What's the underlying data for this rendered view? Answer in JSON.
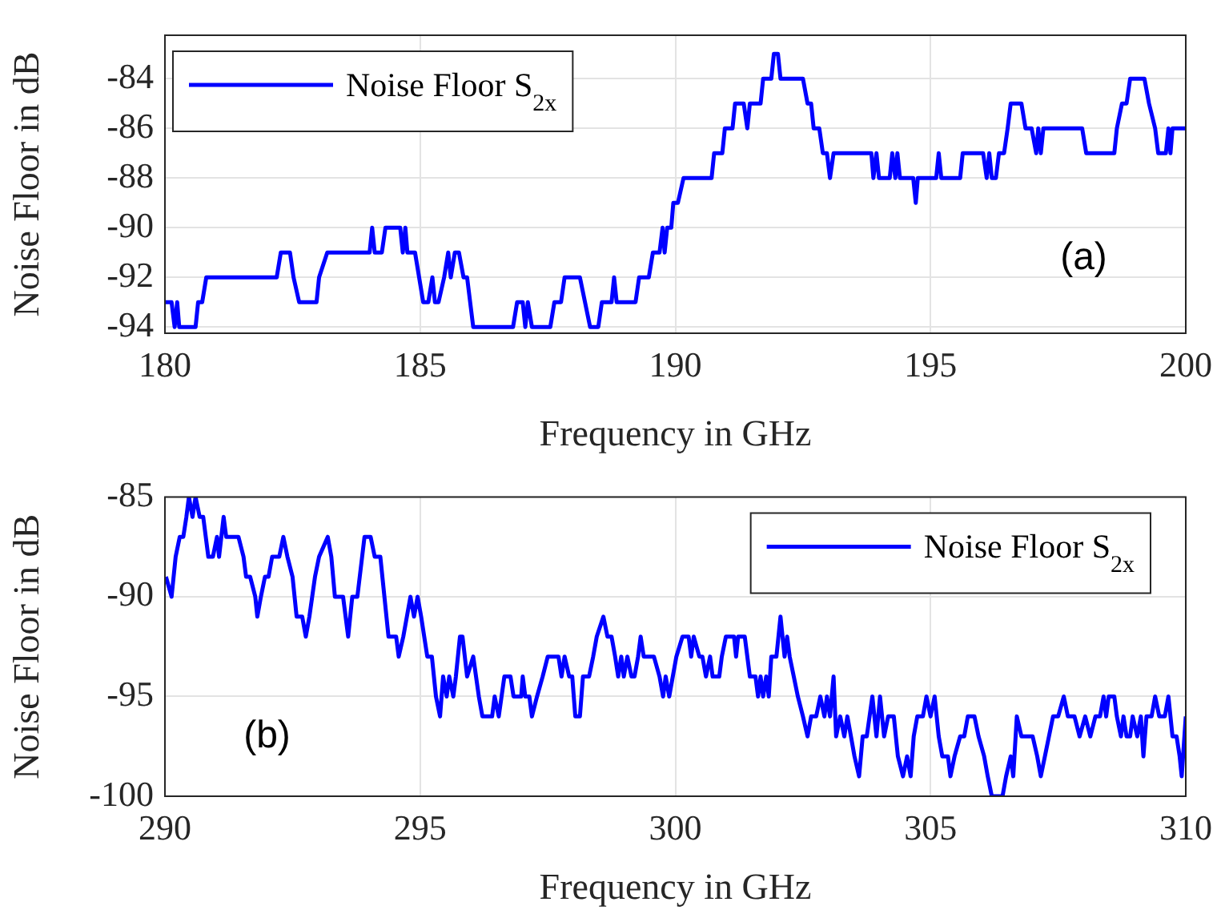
{
  "chart_data": [
    {
      "type": "line",
      "xlabel": "Frequency in GHz",
      "ylabel": "Noise Floor in dB",
      "xlim": [
        180,
        200
      ],
      "xticks": [
        180,
        185,
        190,
        195,
        200
      ],
      "ylim": [
        -94.25,
        -82.25
      ],
      "yticks": [
        -94,
        -92,
        -90,
        -88,
        -86,
        -84
      ],
      "grid": true,
      "legend": "top left",
      "annotations": [
        "(a)"
      ],
      "series": [
        {
          "name": "Noise Floor S$_{2x}$",
          "color": "#0000ff",
          "x": [
            180.0,
            180.13,
            180.19,
            180.24,
            180.28,
            180.6,
            180.65,
            180.73,
            180.81,
            182.19,
            182.27,
            182.45,
            182.52,
            182.63,
            182.97,
            183.02,
            183.18,
            184.01,
            184.06,
            184.11,
            184.25,
            184.32,
            184.61,
            184.66,
            184.71,
            184.75,
            184.9,
            184.98,
            185.06,
            185.16,
            185.24,
            185.29,
            185.36,
            185.47,
            185.55,
            185.6,
            185.68,
            185.76,
            185.85,
            185.92,
            186.04,
            186.82,
            186.9,
            187.01,
            187.06,
            187.11,
            187.19,
            187.55,
            187.63,
            187.76,
            187.83,
            188.13,
            188.23,
            188.33,
            188.49,
            188.56,
            188.75,
            188.8,
            188.85,
            189.22,
            189.29,
            189.48,
            189.56,
            189.69,
            189.75,
            189.79,
            189.84,
            189.92,
            189.96,
            190.05,
            190.16,
            190.71,
            190.76,
            190.92,
            190.97,
            191.12,
            191.17,
            191.34,
            191.41,
            191.46,
            191.67,
            191.72,
            191.88,
            191.93,
            192.01,
            192.06,
            192.5,
            192.59,
            192.66,
            192.71,
            192.82,
            192.89,
            192.97,
            193.03,
            193.1,
            193.84,
            193.88,
            193.94,
            193.99,
            194.2,
            194.25,
            194.31,
            194.35,
            194.4,
            194.66,
            194.71,
            194.75,
            195.11,
            195.16,
            195.21,
            195.58,
            195.63,
            196.03,
            196.1,
            196.15,
            196.2,
            196.28,
            196.34,
            196.44,
            196.51,
            196.57,
            196.78,
            196.86,
            196.98,
            197.07,
            197.11,
            197.16,
            197.21,
            197.97,
            198.05,
            198.6,
            198.65,
            198.75,
            198.84,
            198.91,
            199.19,
            199.28,
            199.4,
            199.46,
            199.61,
            199.66,
            199.7,
            199.74,
            200.0
          ],
          "values": [
            -93,
            -93,
            -94,
            -93,
            -94,
            -94,
            -93,
            -93,
            -92,
            -92,
            -91,
            -91,
            -92,
            -93,
            -93,
            -92,
            -91,
            -91,
            -90,
            -91,
            -91,
            -90,
            -90,
            -91,
            -90,
            -91,
            -91,
            -92,
            -93,
            -93,
            -92,
            -93,
            -93,
            -92,
            -91,
            -92,
            -91,
            -91,
            -92,
            -92,
            -94,
            -94,
            -93,
            -93,
            -94,
            -93,
            -94,
            -94,
            -93,
            -93,
            -92,
            -92,
            -93,
            -94,
            -94,
            -93,
            -93,
            -92,
            -93,
            -93,
            -92,
            -92,
            -91,
            -91,
            -90,
            -91,
            -90,
            -90,
            -89,
            -89,
            -88,
            -88,
            -87,
            -87,
            -86,
            -86,
            -85,
            -85,
            -86,
            -85,
            -85,
            -84,
            -84,
            -83,
            -83,
            -84,
            -84,
            -85,
            -85,
            -86,
            -86,
            -87,
            -87,
            -88,
            -87,
            -87,
            -88,
            -87,
            -88,
            -88,
            -87,
            -88,
            -87,
            -88,
            -88,
            -89,
            -88,
            -88,
            -87,
            -88,
            -88,
            -87,
            -87,
            -88,
            -87,
            -88,
            -88,
            -87,
            -87,
            -86,
            -85,
            -85,
            -86,
            -86,
            -87,
            -86,
            -87,
            -86,
            -86,
            -87,
            -87,
            -86,
            -85,
            -85,
            -84,
            -84,
            -85,
            -86,
            -87,
            -87,
            -86,
            -87,
            -86,
            -86
          ]
        }
      ]
    },
    {
      "type": "line",
      "xlabel": "Frequency in GHz",
      "ylabel": "Noise Floor in dB",
      "xlim": [
        290,
        310
      ],
      "xticks": [
        290,
        295,
        300,
        305,
        310
      ],
      "ylim": [
        -100,
        -85
      ],
      "yticks": [
        -100,
        -95,
        -90,
        -85
      ],
      "grid": true,
      "legend": "top right",
      "annotations": [
        "(b)"
      ],
      "series": [
        {
          "name": "Noise Floor S$_{2x}$",
          "color": "#0000ff",
          "x": [
            290.02,
            290.13,
            290.21,
            290.29,
            290.36,
            290.42,
            290.47,
            290.54,
            290.6,
            290.68,
            290.75,
            290.85,
            290.94,
            291.02,
            291.06,
            291.15,
            291.2,
            291.44,
            291.54,
            291.59,
            291.67,
            291.77,
            291.81,
            291.88,
            291.96,
            292.03,
            292.1,
            292.24,
            292.32,
            292.4,
            292.5,
            292.58,
            292.69,
            292.76,
            292.83,
            292.94,
            293.02,
            293.19,
            293.26,
            293.33,
            293.49,
            293.54,
            293.59,
            293.67,
            293.77,
            293.91,
            294.03,
            294.11,
            294.22,
            294.38,
            294.53,
            294.58,
            294.67,
            294.74,
            294.81,
            294.88,
            294.95,
            295.02,
            295.14,
            295.23,
            295.31,
            295.39,
            295.45,
            295.52,
            295.57,
            295.65,
            295.7,
            295.78,
            295.83,
            295.92,
            296.04,
            296.15,
            296.22,
            296.41,
            296.46,
            296.54,
            296.65,
            296.77,
            296.83,
            296.98,
            297.01,
            297.06,
            297.14,
            297.19,
            297.29,
            297.4,
            297.5,
            297.71,
            297.77,
            297.83,
            297.92,
            297.98,
            298.04,
            298.13,
            298.19,
            298.31,
            298.39,
            298.46,
            298.59,
            298.67,
            298.75,
            298.82,
            298.88,
            298.94,
            298.99,
            299.06,
            299.14,
            299.2,
            299.27,
            299.32,
            299.38,
            299.58,
            299.69,
            299.76,
            299.81,
            299.88,
            299.95,
            300.02,
            300.14,
            300.26,
            300.31,
            300.36,
            300.47,
            300.53,
            300.6,
            300.68,
            300.73,
            300.86,
            300.91,
            300.99,
            301.15,
            301.19,
            301.23,
            301.36,
            301.41,
            301.46,
            301.57,
            301.62,
            301.67,
            301.72,
            301.78,
            301.83,
            301.88,
            301.98,
            302.06,
            302.14,
            302.19,
            302.24,
            302.32,
            302.4,
            302.5,
            302.59,
            302.66,
            302.76,
            302.84,
            302.92,
            302.97,
            303.03,
            303.1,
            303.15,
            303.23,
            303.31,
            303.37,
            303.44,
            303.51,
            303.6,
            303.67,
            303.75,
            303.86,
            303.94,
            304.01,
            304.09,
            304.17,
            304.28,
            304.36,
            304.46,
            304.54,
            304.61,
            304.67,
            304.74,
            304.85,
            304.92,
            305.0,
            305.08,
            305.16,
            305.23,
            305.34,
            305.39,
            305.47,
            305.58,
            305.66,
            305.73,
            305.86,
            305.94,
            306.05,
            306.12,
            306.2,
            306.41,
            306.48,
            306.57,
            306.62,
            306.69,
            306.78,
            306.86,
            307.0,
            307.09,
            307.16,
            307.24,
            307.32,
            307.4,
            307.5,
            307.61,
            307.69,
            307.82,
            307.92,
            308.03,
            308.13,
            308.23,
            308.32,
            308.39,
            308.44,
            308.49,
            308.6,
            308.65,
            308.73,
            308.78,
            308.84,
            308.91,
            308.96,
            309.05,
            309.12,
            309.17,
            309.23,
            309.33,
            309.4,
            309.48,
            309.59,
            309.66,
            309.74,
            309.82,
            309.88,
            309.92,
            310.0
          ],
          "values": [
            -89,
            -90,
            -88,
            -87,
            -87,
            -86,
            -85,
            -86,
            -85,
            -86,
            -86,
            -88,
            -88,
            -87,
            -88,
            -86,
            -87,
            -87,
            -88,
            -89,
            -89,
            -90,
            -91,
            -90,
            -89,
            -89,
            -88,
            -88,
            -87,
            -88,
            -89,
            -91,
            -91,
            -92,
            -91,
            -89,
            -88,
            -87,
            -88,
            -90,
            -90,
            -91,
            -92,
            -90,
            -90,
            -87,
            -87,
            -88,
            -88,
            -92,
            -92,
            -93,
            -92,
            -91,
            -90,
            -91,
            -90,
            -91,
            -93,
            -93,
            -95,
            -96,
            -94,
            -95,
            -94,
            -95,
            -94,
            -92,
            -92,
            -94,
            -93,
            -95,
            -96,
            -96,
            -95,
            -96,
            -94,
            -94,
            -95,
            -95,
            -94,
            -95,
            -95,
            -96,
            -95,
            -94,
            -93,
            -93,
            -94,
            -93,
            -94,
            -94,
            -96,
            -96,
            -94,
            -94,
            -93,
            -92,
            -91,
            -92,
            -92,
            -93,
            -94,
            -93,
            -94,
            -93,
            -94,
            -94,
            -93,
            -92,
            -93,
            -93,
            -94,
            -95,
            -94,
            -95,
            -94,
            -93,
            -92,
            -92,
            -93,
            -92,
            -93,
            -93,
            -94,
            -93,
            -94,
            -94,
            -93,
            -92,
            -92,
            -93,
            -92,
            -92,
            -93,
            -94,
            -94,
            -95,
            -94,
            -95,
            -94,
            -95,
            -93,
            -93,
            -91,
            -93,
            -92,
            -93,
            -94,
            -95,
            -96,
            -97,
            -96,
            -96,
            -95,
            -96,
            -95,
            -96,
            -94,
            -97,
            -96,
            -97,
            -96,
            -97,
            -98,
            -99,
            -97,
            -97,
            -95,
            -97,
            -95,
            -97,
            -96,
            -96,
            -98,
            -99,
            -98,
            -99,
            -97,
            -96,
            -96,
            -95,
            -96,
            -95,
            -97,
            -98,
            -98,
            -99,
            -98,
            -97,
            -97,
            -96,
            -96,
            -97,
            -98,
            -99,
            -100,
            -100,
            -99,
            -98,
            -99,
            -96,
            -97,
            -97,
            -97,
            -98,
            -99,
            -98,
            -97,
            -96,
            -96,
            -95,
            -96,
            -96,
            -97,
            -96,
            -97,
            -96,
            -96,
            -95,
            -96,
            -95,
            -95,
            -96,
            -97,
            -96,
            -97,
            -97,
            -96,
            -97,
            -96,
            -98,
            -96,
            -96,
            -95,
            -96,
            -96,
            -95,
            -97,
            -97,
            -98,
            -99,
            -96
          ]
        }
      ]
    }
  ]
}
